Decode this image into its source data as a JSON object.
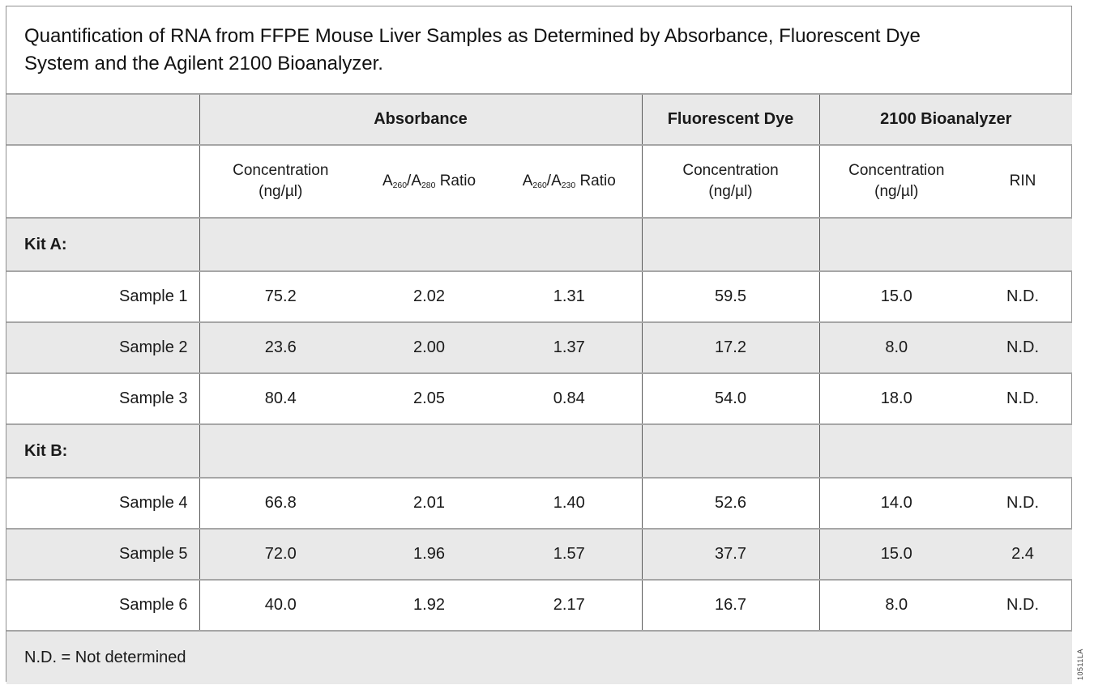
{
  "figure": {
    "title_lines": [
      "Quantification of RNA from FFPE Mouse Liver Samples as Determined by Absorbance, Fluorescent Dye",
      "System and the Agilent 2100 Bioanalyzer."
    ],
    "side_label": "10511LA"
  },
  "colors": {
    "row_shade": "#e9e9e9",
    "horizontal_border": "#a6a6a6",
    "vertical_border": "#595959",
    "figure_border": "#909090"
  },
  "table": {
    "group_headers": {
      "absorbance": "Absorbance",
      "fluorescent": "Fluorescent Dye",
      "bioanalyzer": "2100 Bioanalyzer"
    },
    "subheaders": {
      "abs_conc": {
        "line1": "Concentration",
        "line2": "(ng/µl)"
      },
      "ratio_280": {
        "base1": "A",
        "sub1": "260",
        "base2": "/A",
        "sub2": "280",
        "rest": " Ratio"
      },
      "ratio_230": {
        "base1": "A",
        "sub1": "260",
        "base2": "/A",
        "sub2": "230",
        "rest": " Ratio"
      },
      "fluor_conc": {
        "line1": "Concentration",
        "line2": "(ng/µl)"
      },
      "bio_conc": {
        "line1": "Concentration",
        "line2": "(ng/µl)"
      },
      "rin": "RIN"
    },
    "sections": [
      {
        "label": "Kit A:",
        "samples": [
          {
            "label": "Sample 1",
            "abs_conc": "75.2",
            "ratio_260_280": "2.02",
            "ratio_260_230": "1.31",
            "fluor_conc": "59.5",
            "bio_conc": "15.0",
            "rin": "N.D."
          },
          {
            "label": "Sample 2",
            "abs_conc": "23.6",
            "ratio_260_280": "2.00",
            "ratio_260_230": "1.37",
            "fluor_conc": "17.2",
            "bio_conc": "8.0",
            "rin": "N.D."
          },
          {
            "label": "Sample 3",
            "abs_conc": "80.4",
            "ratio_260_280": "2.05",
            "ratio_260_230": "0.84",
            "fluor_conc": "54.0",
            "bio_conc": "18.0",
            "rin": "N.D."
          }
        ]
      },
      {
        "label": "Kit B:",
        "samples": [
          {
            "label": "Sample 4",
            "abs_conc": "66.8",
            "ratio_260_280": "2.01",
            "ratio_260_230": "1.40",
            "fluor_conc": "52.6",
            "bio_conc": "14.0",
            "rin": "N.D."
          },
          {
            "label": "Sample 5",
            "abs_conc": "72.0",
            "ratio_260_280": "1.96",
            "ratio_260_230": "1.57",
            "fluor_conc": "37.7",
            "bio_conc": "15.0",
            "rin": "2.4"
          },
          {
            "label": "Sample 6",
            "abs_conc": "40.0",
            "ratio_260_280": "1.92",
            "ratio_260_230": "2.17",
            "fluor_conc": "16.7",
            "bio_conc": "8.0",
            "rin": "N.D."
          }
        ]
      }
    ],
    "footnote": "N.D. = Not determined"
  }
}
